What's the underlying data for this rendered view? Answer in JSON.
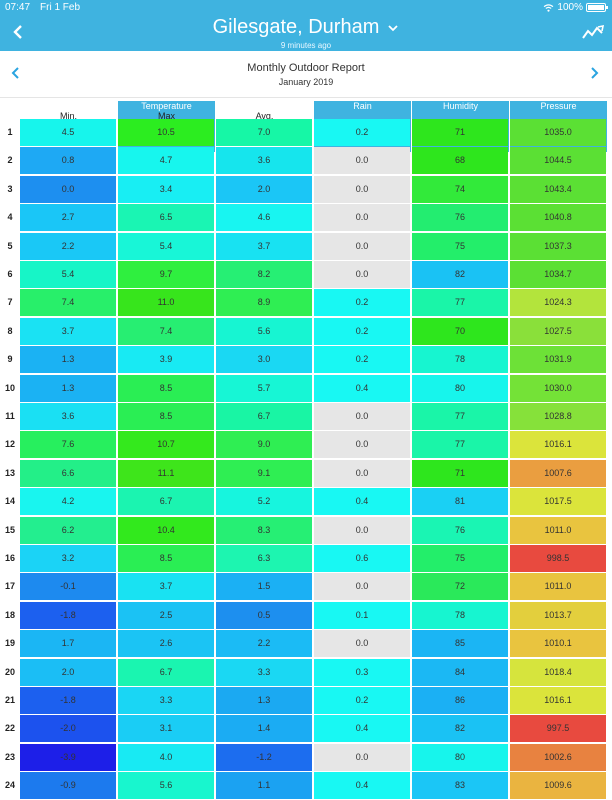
{
  "status": {
    "time": "07:47",
    "date": "Fri 1 Feb",
    "battery": "100%"
  },
  "header": {
    "title": "Gilesgate, Durham",
    "subtitle": "9 minutes ago"
  },
  "report": {
    "title": "Monthly Outdoor Report",
    "subtitle": "January 2019"
  },
  "columns": {
    "min": "Min.",
    "temperature": "Temperature",
    "max": "Max",
    "avg": "Avg.",
    "rain": "Rain",
    "humidity": "Humidity",
    "pressure": "Pressure"
  },
  "colors": {
    "header_bg": "#3fb3e0"
  },
  "icons": {
    "back": "chevron-left-icon",
    "dropdown": "chevron-down-icon",
    "trend": "trend-chart-icon",
    "prev": "chevron-left-icon",
    "next": "chevron-right-icon"
  },
  "rows": [
    {
      "n": "1",
      "min": "4.5",
      "max": "10.5",
      "avg": "7.0",
      "rain": "0.2",
      "hum": "71",
      "pres": "1035.0",
      "c": [
        "#17f5ec",
        "#2ced20",
        "#16f7a6",
        "#18f8f3",
        "#2ee61d",
        "#5be034"
      ]
    },
    {
      "n": "2",
      "min": "0.8",
      "max": "4.7",
      "avg": "3.6",
      "rain": "0.0",
      "hum": "68",
      "pres": "1044.5",
      "c": [
        "#1ea9f4",
        "#17f6ee",
        "#16e5ed",
        "#e6e6e6",
        "#2ee61d",
        "#5be034"
      ]
    },
    {
      "n": "3",
      "min": "0.0",
      "max": "3.4",
      "avg": "2.0",
      "rain": "0.0",
      "hum": "74",
      "pres": "1043.4",
      "c": [
        "#1d8ff0",
        "#18eef3",
        "#1bc6f6",
        "#e6e6e6",
        "#32ea3a",
        "#5be034"
      ]
    },
    {
      "n": "4",
      "min": "2.7",
      "max": "6.5",
      "avg": "4.6",
      "rain": "0.0",
      "hum": "76",
      "pres": "1040.8",
      "c": [
        "#1ac6f7",
        "#1af5b3",
        "#18f5f1",
        "#e6e6e6",
        "#23ed70",
        "#5be034"
      ]
    },
    {
      "n": "5",
      "min": "2.2",
      "max": "5.4",
      "avg": "3.7",
      "rain": "0.0",
      "hum": "75",
      "pres": "1037.3",
      "c": [
        "#1ac8f6",
        "#18f6d7",
        "#18e2f2",
        "#e6e6e6",
        "#23ee6a",
        "#5be034"
      ]
    },
    {
      "n": "6",
      "min": "5.4",
      "max": "9.7",
      "avg": "8.2",
      "rain": "0.0",
      "hum": "82",
      "pres": "1034.7",
      "c": [
        "#17f5c7",
        "#2fef3f",
        "#26ef74",
        "#e6e6e6",
        "#1ac2f4",
        "#5be034"
      ]
    },
    {
      "n": "7",
      "min": "7.4",
      "max": "11.0",
      "avg": "8.9",
      "rain": "0.2",
      "hum": "77",
      "pres": "1024.3",
      "c": [
        "#28ef6a",
        "#37e51c",
        "#2fee53",
        "#18f8f3",
        "#1af5a8",
        "#b3e43c"
      ]
    },
    {
      "n": "8",
      "min": "3.7",
      "max": "7.4",
      "avg": "5.6",
      "rain": "0.2",
      "hum": "70",
      "pres": "1027.5",
      "c": [
        "#1ae2f3",
        "#27ee72",
        "#17f5d2",
        "#18f8f3",
        "#2ee61d",
        "#8ae03a"
      ]
    },
    {
      "n": "9",
      "min": "1.3",
      "max": "3.9",
      "avg": "3.0",
      "rain": "0.2",
      "hum": "78",
      "pres": "1031.9",
      "c": [
        "#1bb2f3",
        "#18eaf3",
        "#1ad8f3",
        "#18f8f3",
        "#17f5d0",
        "#6de137"
      ]
    },
    {
      "n": "10",
      "min": "1.3",
      "max": "8.5",
      "avg": "5.7",
      "rain": "0.4",
      "hum": "80",
      "pres": "1030.0",
      "c": [
        "#1bb2f3",
        "#2aee54",
        "#17f6d5",
        "#18f8f3",
        "#17f5ec",
        "#74e237"
      ]
    },
    {
      "n": "11",
      "min": "3.6",
      "max": "8.5",
      "avg": "6.7",
      "rain": "0.0",
      "hum": "77",
      "pres": "1028.8",
      "c": [
        "#1ae0f3",
        "#2aee54",
        "#19f5a4",
        "#e6e6e6",
        "#1af5a8",
        "#86e13a"
      ]
    },
    {
      "n": "12",
      "min": "7.6",
      "max": "10.7",
      "avg": "9.0",
      "rain": "0.0",
      "hum": "77",
      "pres": "1016.1",
      "c": [
        "#27ef5e",
        "#34e91d",
        "#2fee53",
        "#e6e6e6",
        "#1af5a8",
        "#dbe43b"
      ]
    },
    {
      "n": "13",
      "min": "6.6",
      "max": "11.1",
      "avg": "9.1",
      "rain": "0.0",
      "hum": "71",
      "pres": "1007.6",
      "c": [
        "#23ef88",
        "#3ee51b",
        "#2fee53",
        "#e6e6e6",
        "#2ee61d",
        "#ea9e40"
      ]
    },
    {
      "n": "14",
      "min": "4.2",
      "max": "6.7",
      "avg": "5.2",
      "rain": "0.4",
      "hum": "81",
      "pres": "1017.5",
      "c": [
        "#19f5ef",
        "#1bf4b0",
        "#17f5de",
        "#18f8f3",
        "#1ad0f4",
        "#dbe43b"
      ]
    },
    {
      "n": "15",
      "min": "6.2",
      "max": "10.4",
      "avg": "8.3",
      "rain": "0.0",
      "hum": "76",
      "pres": "1011.0",
      "c": [
        "#23ee8f",
        "#32e91d",
        "#26ef74",
        "#e6e6e6",
        "#1af5b3",
        "#e9c43f"
      ]
    },
    {
      "n": "16",
      "min": "3.2",
      "max": "8.5",
      "avg": "6.3",
      "rain": "0.6",
      "hum": "75",
      "pres": "998.5",
      "c": [
        "#1bd3f6",
        "#2aee54",
        "#1df5b0",
        "#18f8f3",
        "#23ee6a",
        "#e84a3f"
      ]
    },
    {
      "n": "17",
      "min": "-0.1",
      "max": "3.7",
      "avg": "1.5",
      "rain": "0.0",
      "hum": "72",
      "pres": "1011.0",
      "c": [
        "#1d8aef",
        "#19e2f2",
        "#1bb0f4",
        "#e6e6e6",
        "#2ae95a",
        "#e9c43f"
      ]
    },
    {
      "n": "18",
      "min": "-1.8",
      "max": "2.5",
      "avg": "0.5",
      "rain": "0.1",
      "hum": "78",
      "pres": "1013.7",
      "c": [
        "#1c60ef",
        "#1bc2f4",
        "#1d8fef",
        "#18f8f3",
        "#17f5d0",
        "#e3cf3d"
      ]
    },
    {
      "n": "19",
      "min": "1.7",
      "max": "2.6",
      "avg": "2.2",
      "rain": "0.0",
      "hum": "85",
      "pres": "1010.1",
      "c": [
        "#1bb6f4",
        "#1bc4f4",
        "#1bbbf5",
        "#e6e6e6",
        "#1bb5f4",
        "#e9c43f"
      ]
    },
    {
      "n": "20",
      "min": "2.0",
      "max": "6.7",
      "avg": "3.3",
      "rain": "0.3",
      "hum": "84",
      "pres": "1018.4",
      "c": [
        "#1bbef5",
        "#1af5b0",
        "#1ad8f3",
        "#18f8f3",
        "#1bb8f4",
        "#d6e43d"
      ]
    },
    {
      "n": "21",
      "min": "-1.8",
      "max": "3.3",
      "avg": "1.3",
      "rain": "0.2",
      "hum": "86",
      "pres": "1016.1",
      "c": [
        "#1c60ef",
        "#1ad6f4",
        "#1ba9f2",
        "#18f8f3",
        "#1bb0f4",
        "#dbe43b"
      ]
    },
    {
      "n": "22",
      "min": "-2.0",
      "max": "3.1",
      "avg": "1.4",
      "rain": "0.4",
      "hum": "82",
      "pres": "997.5",
      "c": [
        "#1c52ee",
        "#1acdf5",
        "#1bacf3",
        "#18f8f3",
        "#1ac2f4",
        "#e84a3f"
      ]
    },
    {
      "n": "23",
      "min": "-3.9",
      "max": "4.0",
      "avg": "-1.2",
      "rain": "0.0",
      "hum": "80",
      "pres": "1002.6",
      "c": [
        "#1d1fe8",
        "#18eaf3",
        "#1c6def",
        "#e6e6e6",
        "#17f5ec",
        "#e88240"
      ]
    },
    {
      "n": "24",
      "min": "-0.9",
      "max": "5.6",
      "avg": "1.1",
      "rain": "0.4",
      "hum": "83",
      "pres": "1009.6",
      "c": [
        "#1c7aee",
        "#18f6ce",
        "#1ba2f2",
        "#18f8f3",
        "#1bc6f6",
        "#eab440"
      ]
    }
  ]
}
